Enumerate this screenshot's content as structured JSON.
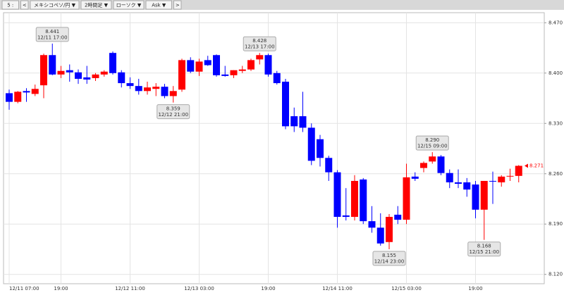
{
  "toolbar": [
    "5 :",
    "<",
    "メキシコペソ/円 ▼",
    "2時間足 ▼",
    "ローソク ▼",
    "Ask ▼",
    ">"
  ],
  "chart_data": {
    "type": "candlestick",
    "categories": [
      "12/11 07:00",
      null,
      null,
      null,
      null,
      null,
      "19:00",
      null,
      null,
      null,
      null,
      null,
      null,
      null,
      "12/12 11:00",
      null,
      null,
      null,
      null,
      null,
      null,
      null,
      "12/13 03:00",
      null,
      null,
      null,
      null,
      null,
      null,
      null,
      "19:00",
      null,
      null,
      null,
      null,
      null,
      null,
      null,
      "12/14 11:00",
      null,
      null,
      null,
      null,
      null,
      null,
      null,
      "12/15 03:00",
      null,
      null,
      null,
      null,
      null,
      null,
      null,
      "19:00",
      null,
      null,
      null,
      null,
      null
    ],
    "open": [
      8.372,
      8.36,
      8.375,
      8.371,
      8.383,
      8.425,
      8.398,
      8.404,
      8.401,
      8.394,
      8.393,
      8.398,
      8.428,
      8.401,
      8.386,
      8.382,
      8.375,
      8.378,
      8.381,
      8.368,
      8.377,
      8.418,
      8.402,
      8.418,
      8.425,
      8.398,
      8.397,
      8.403,
      8.405,
      8.419,
      8.425,
      8.4,
      8.388,
      8.34,
      8.34,
      8.324,
      8.308,
      8.282,
      8.262,
      8.202,
      8.2,
      8.252,
      8.194,
      8.185,
      8.165,
      8.203,
      8.196,
      8.256,
      8.268,
      8.277,
      8.284,
      8.261,
      8.248,
      8.248,
      8.245,
      8.21,
      8.25,
      8.248,
      8.256,
      8.257
    ],
    "high": [
      8.377,
      8.375,
      8.379,
      8.384,
      8.427,
      8.441,
      8.41,
      8.412,
      8.405,
      8.41,
      8.4,
      8.404,
      8.43,
      8.404,
      8.394,
      8.392,
      8.388,
      8.386,
      8.385,
      8.382,
      8.42,
      8.422,
      8.42,
      8.424,
      8.426,
      8.41,
      8.404,
      8.41,
      8.42,
      8.428,
      8.427,
      8.403,
      8.392,
      8.352,
      8.374,
      8.33,
      8.314,
      8.285,
      8.265,
      8.24,
      8.258,
      8.254,
      8.215,
      8.205,
      8.204,
      8.215,
      8.274,
      8.262,
      8.277,
      8.29,
      8.286,
      8.266,
      8.266,
      8.254,
      8.25,
      8.25,
      8.263,
      8.258,
      8.267,
      8.272
    ],
    "low": [
      8.349,
      8.358,
      8.36,
      8.368,
      8.365,
      8.397,
      8.393,
      8.388,
      8.385,
      8.385,
      8.389,
      8.395,
      8.398,
      8.38,
      8.378,
      8.37,
      8.37,
      8.368,
      8.365,
      8.359,
      8.374,
      8.4,
      8.396,
      8.41,
      8.395,
      8.395,
      8.393,
      8.4,
      8.403,
      8.412,
      8.395,
      8.384,
      8.322,
      8.318,
      8.318,
      8.272,
      8.27,
      8.25,
      8.185,
      8.195,
      8.195,
      8.19,
      8.178,
      8.16,
      8.155,
      8.19,
      8.19,
      8.25,
      8.262,
      8.274,
      8.258,
      8.24,
      8.24,
      8.228,
      8.198,
      8.168,
      8.218,
      8.242,
      8.25,
      8.248
    ],
    "close": [
      8.36,
      8.374,
      8.373,
      8.378,
      8.425,
      8.398,
      8.403,
      8.401,
      8.392,
      8.391,
      8.398,
      8.402,
      8.4,
      8.386,
      8.382,
      8.375,
      8.38,
      8.381,
      8.368,
      8.375,
      8.418,
      8.402,
      8.416,
      8.411,
      8.397,
      8.396,
      8.404,
      8.405,
      8.418,
      8.425,
      8.398,
      8.386,
      8.326,
      8.326,
      8.324,
      8.278,
      8.282,
      8.262,
      8.2,
      8.2,
      8.25,
      8.194,
      8.185,
      8.163,
      8.2,
      8.196,
      8.255,
      8.253,
      8.275,
      8.284,
      8.261,
      8.248,
      8.246,
      8.238,
      8.21,
      8.25,
      8.249,
      8.256,
      8.257,
      8.271
    ],
    "up_color": "#ff0000",
    "down_color": "#0000ff",
    "ylim": [
      8.107,
      8.484
    ],
    "yticks": [
      {
        "value": 8.12,
        "label": "8.120"
      },
      {
        "value": 8.19,
        "label": "8.190"
      },
      {
        "value": 8.26,
        "label": "8.260"
      },
      {
        "value": 8.33,
        "label": "8.330"
      },
      {
        "value": 8.4,
        "label": "8.400"
      },
      {
        "value": 8.47,
        "label": "8.470"
      }
    ],
    "grid": true,
    "annotations": [
      {
        "price": 8.441,
        "time": "12/11 17:00",
        "side": "high"
      },
      {
        "price": 8.359,
        "time": "12/12 21:00",
        "side": "low"
      },
      {
        "price": 8.428,
        "time": "12/13 17:00",
        "side": "high"
      },
      {
        "price": 8.155,
        "time": "12/14 23:00",
        "side": "low"
      },
      {
        "price": {
          "value": 8.29,
          "label": "8.290"
        },
        "time": "12/15 09:00",
        "side": "high"
      },
      {
        "price": 8.168,
        "time": "12/15 21:00",
        "side": "low"
      }
    ],
    "last_price": 8.271
  }
}
